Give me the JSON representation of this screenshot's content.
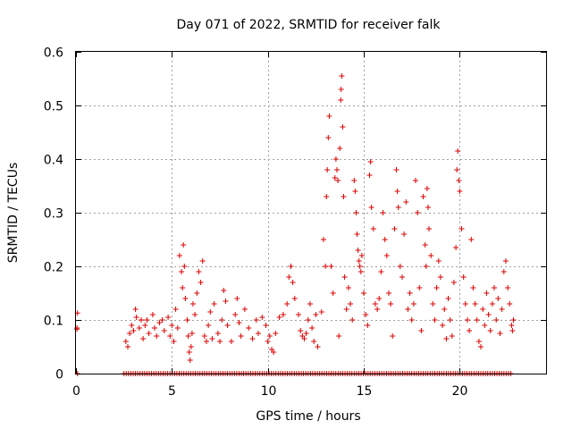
{
  "chart_data": {
    "type": "scatter",
    "title": "Day 071 of 2022, SRMTID for receiver falk",
    "xlabel": "GPS time / hours",
    "ylabel": "SRMTID / TECUs",
    "xlim": [
      0,
      24.5
    ],
    "ylim": [
      0,
      0.6
    ],
    "xticks": [
      0,
      5,
      10,
      15,
      20
    ],
    "xtick_labels": [
      "0",
      "5",
      "10",
      "15",
      "20"
    ],
    "yticks": [
      0,
      0.1,
      0.2,
      0.3,
      0.4,
      0.5,
      0.6
    ],
    "ytick_labels": [
      "0",
      "0.1",
      "0.2",
      "0.3",
      "0.4",
      "0.5",
      "0.6"
    ],
    "grid": true,
    "marker": "+",
    "series": [
      {
        "name": "SRMTID",
        "color": "#dd0000",
        "points": [
          [
            0.05,
            0.085
          ],
          [
            0.05,
            0.083
          ],
          [
            0.08,
            0.113
          ],
          [
            0.08,
            0.0
          ],
          [
            2.6,
            0.06
          ],
          [
            2.7,
            0.05
          ],
          [
            2.8,
            0.075
          ],
          [
            2.9,
            0.09
          ],
          [
            3.0,
            0.08
          ],
          [
            3.1,
            0.12
          ],
          [
            3.15,
            0.105
          ],
          [
            3.3,
            0.085
          ],
          [
            3.4,
            0.1
          ],
          [
            3.5,
            0.065
          ],
          [
            3.6,
            0.09
          ],
          [
            3.7,
            0.1
          ],
          [
            3.8,
            0.075
          ],
          [
            4.0,
            0.11
          ],
          [
            4.1,
            0.085
          ],
          [
            4.2,
            0.07
          ],
          [
            4.35,
            0.095
          ],
          [
            4.5,
            0.1
          ],
          [
            4.6,
            0.08
          ],
          [
            4.8,
            0.105
          ],
          [
            4.9,
            0.07
          ],
          [
            5.0,
            0.09
          ],
          [
            5.1,
            0.06
          ],
          [
            5.2,
            0.12
          ],
          [
            5.3,
            0.085
          ],
          [
            5.4,
            0.22
          ],
          [
            5.5,
            0.19
          ],
          [
            5.55,
            0.16
          ],
          [
            5.6,
            0.24
          ],
          [
            5.65,
            0.2
          ],
          [
            5.7,
            0.14
          ],
          [
            5.8,
            0.1
          ],
          [
            5.85,
            0.07
          ],
          [
            5.9,
            0.04
          ],
          [
            5.95,
            0.025
          ],
          [
            6.0,
            0.05
          ],
          [
            6.05,
            0.075
          ],
          [
            6.1,
            0.13
          ],
          [
            6.2,
            0.11
          ],
          [
            6.3,
            0.15
          ],
          [
            6.4,
            0.19
          ],
          [
            6.5,
            0.17
          ],
          [
            6.6,
            0.21
          ],
          [
            6.7,
            0.07
          ],
          [
            6.8,
            0.06
          ],
          [
            6.9,
            0.09
          ],
          [
            7.0,
            0.115
          ],
          [
            7.1,
            0.065
          ],
          [
            7.2,
            0.13
          ],
          [
            7.4,
            0.075
          ],
          [
            7.5,
            0.06
          ],
          [
            7.6,
            0.1
          ],
          [
            7.7,
            0.155
          ],
          [
            7.8,
            0.135
          ],
          [
            7.9,
            0.09
          ],
          [
            8.1,
            0.06
          ],
          [
            8.3,
            0.11
          ],
          [
            8.4,
            0.14
          ],
          [
            8.5,
            0.095
          ],
          [
            8.6,
            0.07
          ],
          [
            8.8,
            0.12
          ],
          [
            9.0,
            0.085
          ],
          [
            9.2,
            0.065
          ],
          [
            9.4,
            0.1
          ],
          [
            9.5,
            0.075
          ],
          [
            9.7,
            0.105
          ],
          [
            9.9,
            0.09
          ],
          [
            10.0,
            0.06
          ],
          [
            10.1,
            0.07
          ],
          [
            10.2,
            0.045
          ],
          [
            10.3,
            0.04
          ],
          [
            10.4,
            0.075
          ],
          [
            10.6,
            0.105
          ],
          [
            10.8,
            0.11
          ],
          [
            11.0,
            0.13
          ],
          [
            11.1,
            0.18
          ],
          [
            11.2,
            0.2
          ],
          [
            11.3,
            0.17
          ],
          [
            11.4,
            0.14
          ],
          [
            11.6,
            0.11
          ],
          [
            11.7,
            0.08
          ],
          [
            11.8,
            0.07
          ],
          [
            11.9,
            0.065
          ],
          [
            12.0,
            0.075
          ],
          [
            12.1,
            0.1
          ],
          [
            12.2,
            0.13
          ],
          [
            12.3,
            0.085
          ],
          [
            12.4,
            0.06
          ],
          [
            12.5,
            0.11
          ],
          [
            12.6,
            0.05
          ],
          [
            12.8,
            0.115
          ],
          [
            12.9,
            0.25
          ],
          [
            13.0,
            0.2
          ],
          [
            13.05,
            0.33
          ],
          [
            13.1,
            0.38
          ],
          [
            13.15,
            0.44
          ],
          [
            13.2,
            0.48
          ],
          [
            13.3,
            0.2
          ],
          [
            13.4,
            0.15
          ],
          [
            13.5,
            0.365
          ],
          [
            13.55,
            0.4
          ],
          [
            13.6,
            0.38
          ],
          [
            13.65,
            0.36
          ],
          [
            13.7,
            0.07
          ],
          [
            13.75,
            0.42
          ],
          [
            13.8,
            0.51
          ],
          [
            13.82,
            0.53
          ],
          [
            13.85,
            0.555
          ],
          [
            13.9,
            0.46
          ],
          [
            13.95,
            0.33
          ],
          [
            14.0,
            0.18
          ],
          [
            14.1,
            0.12
          ],
          [
            14.2,
            0.16
          ],
          [
            14.3,
            0.13
          ],
          [
            14.4,
            0.1
          ],
          [
            14.5,
            0.36
          ],
          [
            14.55,
            0.34
          ],
          [
            14.6,
            0.3
          ],
          [
            14.65,
            0.26
          ],
          [
            14.7,
            0.23
          ],
          [
            14.75,
            0.21
          ],
          [
            14.8,
            0.2
          ],
          [
            14.85,
            0.19
          ],
          [
            14.9,
            0.22
          ],
          [
            15.0,
            0.15
          ],
          [
            15.1,
            0.11
          ],
          [
            15.2,
            0.09
          ],
          [
            15.3,
            0.37
          ],
          [
            15.35,
            0.395
          ],
          [
            15.4,
            0.31
          ],
          [
            15.5,
            0.27
          ],
          [
            15.6,
            0.13
          ],
          [
            15.7,
            0.12
          ],
          [
            15.8,
            0.14
          ],
          [
            15.9,
            0.19
          ],
          [
            16.0,
            0.3
          ],
          [
            16.1,
            0.25
          ],
          [
            16.2,
            0.22
          ],
          [
            16.3,
            0.15
          ],
          [
            16.4,
            0.13
          ],
          [
            16.5,
            0.07
          ],
          [
            16.6,
            0.27
          ],
          [
            16.7,
            0.38
          ],
          [
            16.75,
            0.34
          ],
          [
            16.8,
            0.31
          ],
          [
            16.9,
            0.2
          ],
          [
            17.0,
            0.18
          ],
          [
            17.1,
            0.26
          ],
          [
            17.2,
            0.32
          ],
          [
            17.3,
            0.12
          ],
          [
            17.4,
            0.15
          ],
          [
            17.5,
            0.1
          ],
          [
            17.6,
            0.13
          ],
          [
            17.7,
            0.36
          ],
          [
            17.8,
            0.3
          ],
          [
            17.9,
            0.16
          ],
          [
            18.0,
            0.08
          ],
          [
            18.1,
            0.33
          ],
          [
            18.2,
            0.24
          ],
          [
            18.25,
            0.2
          ],
          [
            18.3,
            0.345
          ],
          [
            18.35,
            0.31
          ],
          [
            18.4,
            0.27
          ],
          [
            18.5,
            0.22
          ],
          [
            18.6,
            0.13
          ],
          [
            18.7,
            0.1
          ],
          [
            18.8,
            0.16
          ],
          [
            18.9,
            0.21
          ],
          [
            19.0,
            0.18
          ],
          [
            19.1,
            0.09
          ],
          [
            19.2,
            0.12
          ],
          [
            19.3,
            0.065
          ],
          [
            19.4,
            0.14
          ],
          [
            19.5,
            0.1
          ],
          [
            19.6,
            0.07
          ],
          [
            19.7,
            0.17
          ],
          [
            19.8,
            0.235
          ],
          [
            19.85,
            0.38
          ],
          [
            19.9,
            0.415
          ],
          [
            19.95,
            0.36
          ],
          [
            20.0,
            0.34
          ],
          [
            20.1,
            0.27
          ],
          [
            20.2,
            0.18
          ],
          [
            20.3,
            0.13
          ],
          [
            20.4,
            0.1
          ],
          [
            20.5,
            0.08
          ],
          [
            20.6,
            0.25
          ],
          [
            20.7,
            0.16
          ],
          [
            20.8,
            0.13
          ],
          [
            20.9,
            0.1
          ],
          [
            21.0,
            0.06
          ],
          [
            21.1,
            0.05
          ],
          [
            21.2,
            0.12
          ],
          [
            21.3,
            0.09
          ],
          [
            21.4,
            0.15
          ],
          [
            21.5,
            0.11
          ],
          [
            21.6,
            0.08
          ],
          [
            21.7,
            0.13
          ],
          [
            21.8,
            0.16
          ],
          [
            21.9,
            0.1
          ],
          [
            22.0,
            0.14
          ],
          [
            22.1,
            0.075
          ],
          [
            22.2,
            0.12
          ],
          [
            22.3,
            0.19
          ],
          [
            22.4,
            0.21
          ],
          [
            22.5,
            0.16
          ],
          [
            22.6,
            0.13
          ],
          [
            22.7,
            0.09
          ],
          [
            22.75,
            0.08
          ],
          [
            22.8,
            0.1
          ]
        ],
        "zero_run": {
          "from": 2.5,
          "to": 22.75,
          "step": 0.12,
          "value": 0
        }
      }
    ]
  }
}
